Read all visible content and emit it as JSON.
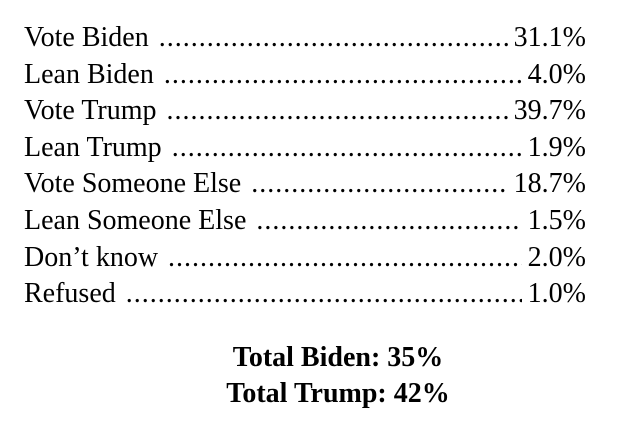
{
  "results": [
    {
      "label": "Vote Biden",
      "value": "31.1%"
    },
    {
      "label": "Lean Biden",
      "value": "4.0%"
    },
    {
      "label": "Vote Trump",
      "value": "39.7%"
    },
    {
      "label": "Lean Trump",
      "value": "1.9%"
    },
    {
      "label": "Vote Someone Else",
      "value": "18.7%"
    },
    {
      "label": "Lean Someone Else",
      "value": "1.5%"
    },
    {
      "label": "Don’t know",
      "value": "2.0%"
    },
    {
      "label": "Refused",
      "value": "1.0%"
    }
  ],
  "totals": {
    "biden": "Total Biden: 35%",
    "trump": "Total Trump: 42%"
  }
}
